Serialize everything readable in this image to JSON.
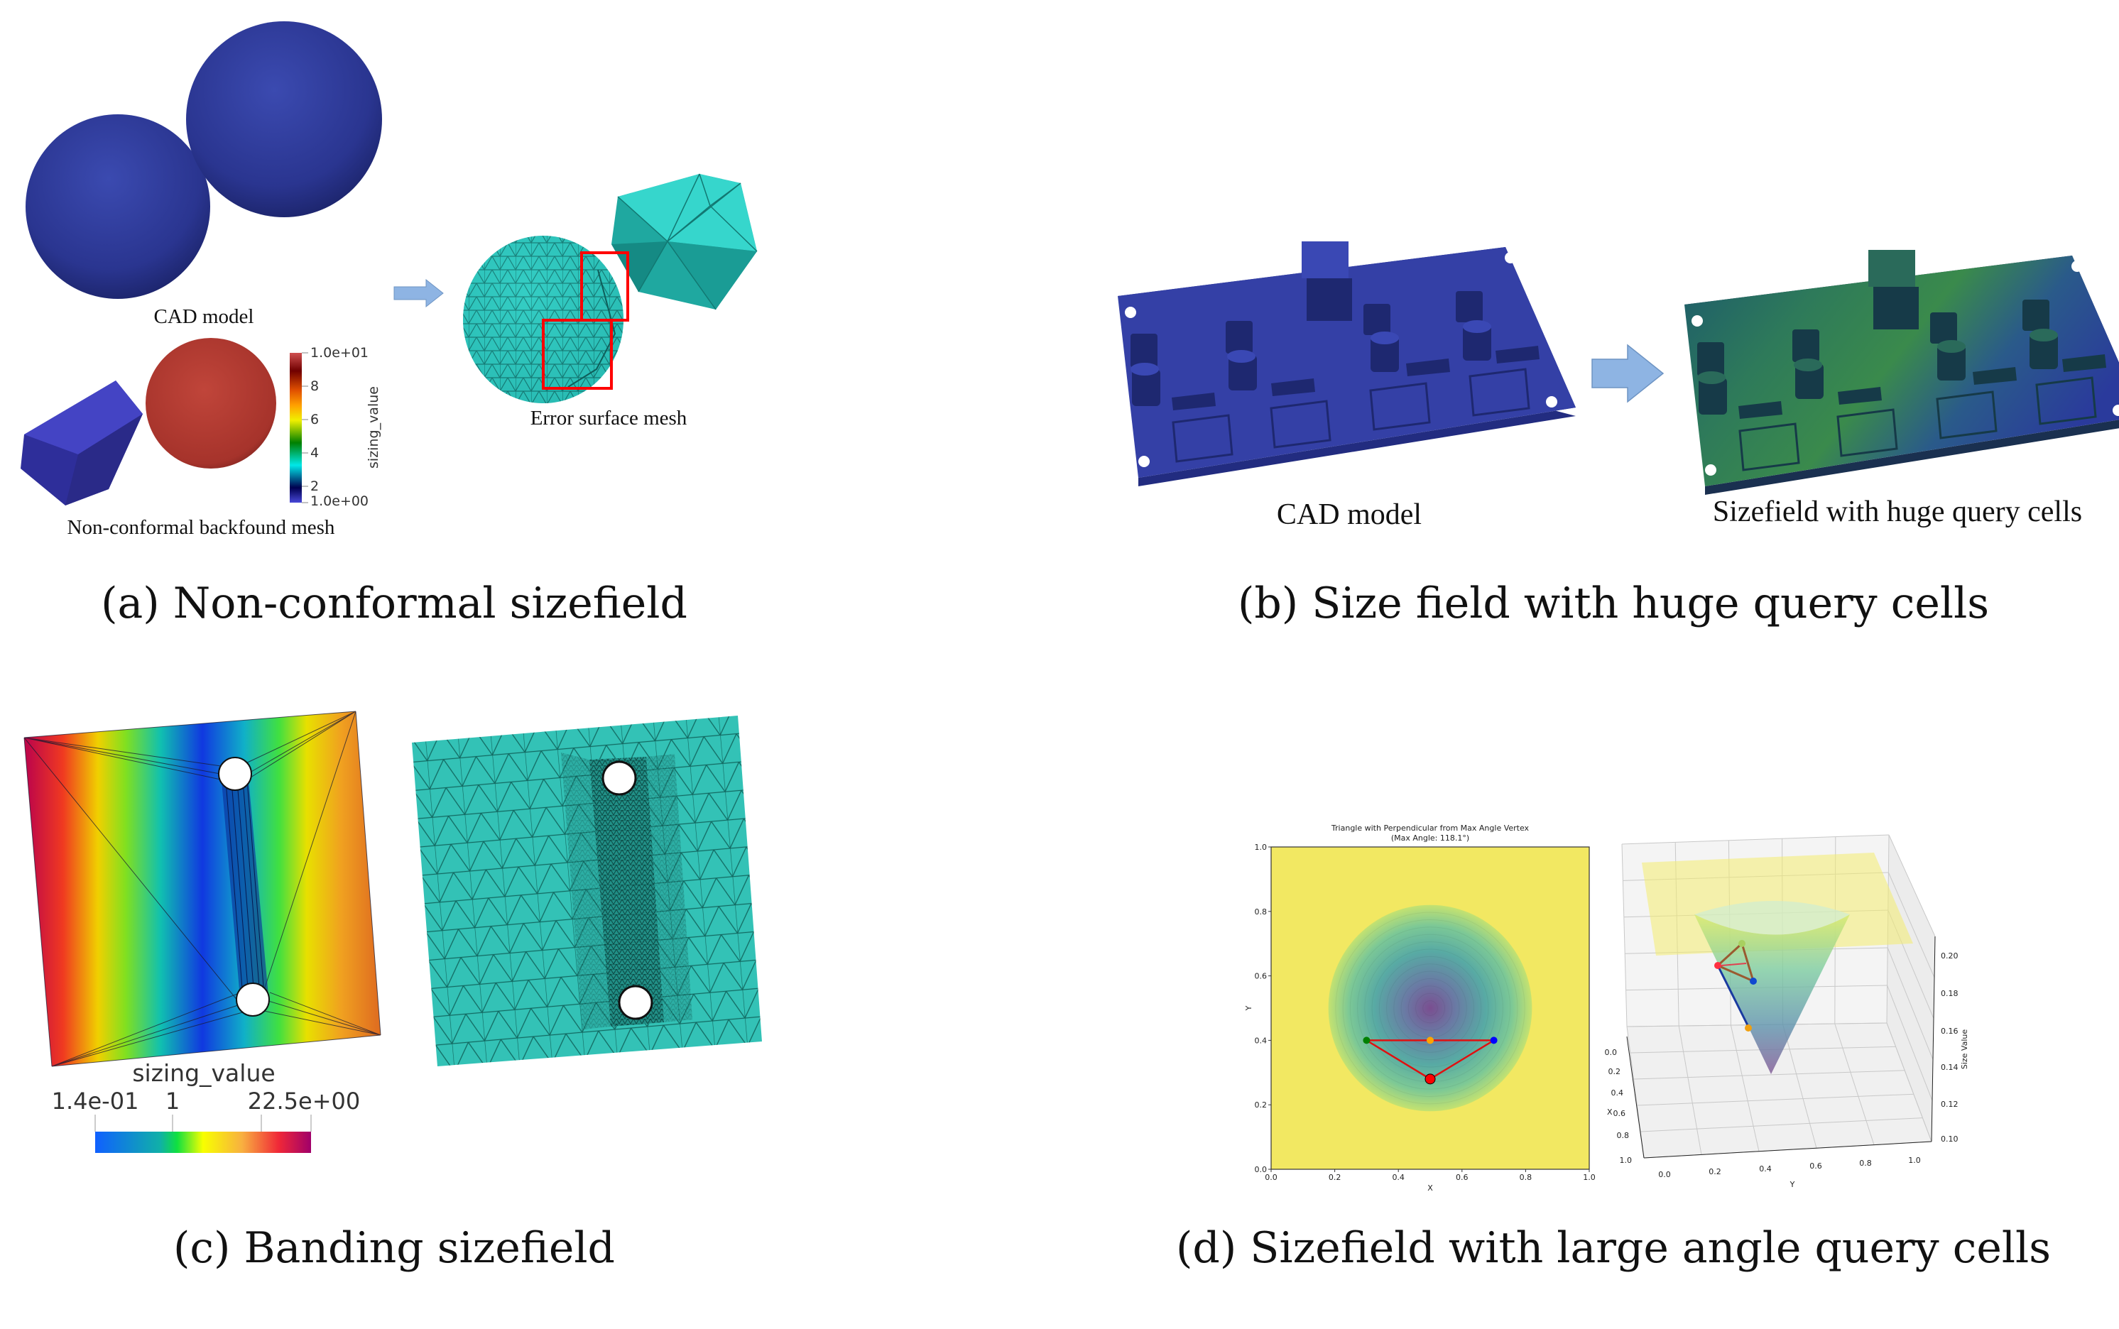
{
  "panels": {
    "a": {
      "caption": "(a) Non-conformal sizefield",
      "cad_label": "CAD model",
      "backmesh_label": "Non-conformal backfound mesh",
      "error_label": "Error surface mesh",
      "colorbar": {
        "title": "sizing_value",
        "ticks": [
          "1.0e+01",
          "8",
          "6",
          "4",
          "2",
          "1.0e+00"
        ]
      }
    },
    "b": {
      "caption": "(b) Size field with huge query cells",
      "cad_label": "CAD model",
      "result_label": "Sizefield with huge query cells"
    },
    "c": {
      "caption": "(c) Banding sizefield",
      "colorbar": {
        "title": "sizing_value",
        "labels": [
          "1.4e-01",
          "1",
          "22.5e+00"
        ]
      }
    },
    "d": {
      "caption": "(d) Sizefield with large angle query cells"
    }
  },
  "colors": {
    "arrow": "#8eb4e3",
    "cad_blue": "#2f3a9e",
    "mesh_teal": "#2fc9c0",
    "highlight_box": "#ff0000",
    "triangle_edge": "#e01010"
  },
  "icons": [
    "right-arrow-icon",
    "right-arrow-icon"
  ],
  "chart_data": [
    {
      "type": "scatter",
      "title": "Triangle with Perpendicular from Max Angle Vertex",
      "subtitle": "(Max Angle: 118.1°)",
      "xlabel": "X",
      "ylabel": "Y",
      "xlim": [
        0,
        1
      ],
      "ylim": [
        0,
        1
      ],
      "xticks": [
        "0.0",
        "0.2",
        "0.4",
        "0.6",
        "0.8",
        "1.0"
      ],
      "yticks": [
        "0.0",
        "0.2",
        "0.4",
        "0.6",
        "0.8",
        "1.0"
      ],
      "grid": false,
      "background": {
        "type": "contour",
        "center": [
          0.5,
          0.5
        ],
        "radius": 0.32,
        "colormap": "viridis"
      },
      "triangle": [
        [
          0.3,
          0.4
        ],
        [
          0.7,
          0.4
        ],
        [
          0.5,
          0.28
        ]
      ],
      "points": [
        {
          "x": 0.3,
          "y": 0.4,
          "color": "#008000"
        },
        {
          "x": 0.7,
          "y": 0.4,
          "color": "#0000ff"
        },
        {
          "x": 0.5,
          "y": 0.4,
          "color": "#ffa500"
        },
        {
          "x": 0.5,
          "y": 0.28,
          "color": "#ff0000"
        }
      ]
    },
    {
      "type": "surface",
      "xlabel": "X",
      "ylabel": "Y",
      "zlabel": "Size Value",
      "xticks": [
        "0.0",
        "0.2",
        "0.4",
        "0.6",
        "0.8",
        "1.0"
      ],
      "yticks": [
        "0.0",
        "0.2",
        "0.4",
        "0.6",
        "0.8",
        "1.0"
      ],
      "zticks": [
        "0.20",
        "0.18",
        "0.16",
        "0.14",
        "0.12",
        "0.10"
      ],
      "zlim": [
        0.1,
        0.2
      ],
      "grid": true
    }
  ]
}
